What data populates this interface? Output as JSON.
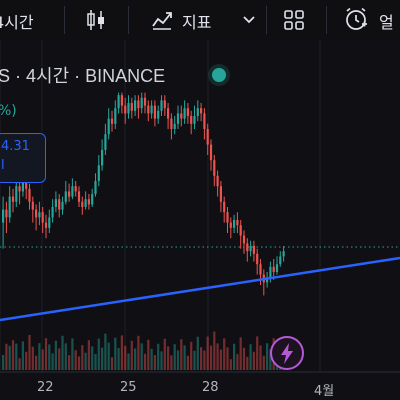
{
  "toolbar": {
    "interval_label": "4시간",
    "indicators_label": "지표",
    "alert_label": "얼"
  },
  "symbol": {
    "line": "S · 4시간 · BINANCE",
    "change_text": "%)",
    "price_box_line1": "4.31",
    "price_box_line2": "l"
  },
  "colors": {
    "up": "#26a69a",
    "down": "#ef5350",
    "trendline": "#2962ff",
    "price_line": "#26a69a",
    "background": "#101014"
  },
  "icons": [
    "candles-icon",
    "indicators-icon",
    "chevron-down-icon",
    "layout-grid-icon",
    "alarm-icon",
    "lightning-icon"
  ],
  "chart_data": {
    "type": "candlestick",
    "x_tick_labels": [
      "22",
      "25",
      "28",
      "4월"
    ],
    "price_scale": "relative (no price axis visible)",
    "trendline": "ascending blue line from lower-left to right",
    "current_price_line": "dotted green horizontal line",
    "candles": [
      [
        50,
        55,
        40,
        60
      ],
      [
        55,
        52,
        46,
        58
      ],
      [
        52,
        60,
        50,
        64
      ],
      [
        60,
        58,
        54,
        63
      ],
      [
        58,
        64,
        56,
        68
      ],
      [
        64,
        62,
        57,
        66
      ],
      [
        62,
        66,
        60,
        70
      ],
      [
        66,
        63,
        59,
        68
      ],
      [
        63,
        58,
        55,
        65
      ],
      [
        58,
        55,
        50,
        60
      ],
      [
        55,
        52,
        47,
        57
      ],
      [
        52,
        54,
        49,
        58
      ],
      [
        54,
        50,
        46,
        56
      ],
      [
        50,
        48,
        44,
        53
      ],
      [
        48,
        52,
        46,
        55
      ],
      [
        52,
        56,
        50,
        59
      ],
      [
        56,
        59,
        54,
        62
      ],
      [
        59,
        55,
        52,
        61
      ],
      [
        55,
        58,
        53,
        60
      ],
      [
        58,
        62,
        57,
        66
      ],
      [
        62,
        60,
        58,
        65
      ],
      [
        60,
        64,
        59,
        67
      ],
      [
        64,
        62,
        60,
        66
      ],
      [
        62,
        58,
        56,
        64
      ],
      [
        58,
        56,
        53,
        60
      ],
      [
        56,
        59,
        55,
        62
      ],
      [
        59,
        57,
        55,
        61
      ],
      [
        57,
        61,
        56,
        63
      ],
      [
        61,
        66,
        60,
        69
      ],
      [
        66,
        72,
        64,
        76
      ],
      [
        72,
        78,
        70,
        82
      ],
      [
        78,
        84,
        76,
        88
      ],
      [
        84,
        90,
        82,
        94
      ],
      [
        90,
        88,
        85,
        93
      ],
      [
        88,
        94,
        86,
        97
      ],
      [
        94,
        99,
        92,
        100
      ],
      [
        99,
        95,
        92,
        100
      ],
      [
        95,
        92,
        88,
        98
      ],
      [
        92,
        96,
        90,
        99
      ],
      [
        96,
        93,
        90,
        98
      ],
      [
        93,
        97,
        91,
        99
      ],
      [
        97,
        94,
        90,
        99
      ],
      [
        94,
        98,
        92,
        100
      ],
      [
        98,
        95,
        92,
        100
      ],
      [
        95,
        92,
        89,
        97
      ],
      [
        92,
        95,
        90,
        97
      ],
      [
        95,
        90,
        87,
        97
      ],
      [
        90,
        93,
        88,
        95
      ],
      [
        93,
        97,
        91,
        99
      ],
      [
        97,
        94,
        91,
        99
      ],
      [
        94,
        90,
        86,
        96
      ],
      [
        90,
        86,
        82,
        92
      ],
      [
        86,
        88,
        84,
        91
      ],
      [
        88,
        92,
        86,
        95
      ],
      [
        92,
        90,
        87,
        95
      ],
      [
        90,
        94,
        88,
        97
      ],
      [
        94,
        91,
        88,
        96
      ],
      [
        91,
        88,
        84,
        93
      ],
      [
        88,
        91,
        86,
        95
      ],
      [
        91,
        94,
        89,
        97
      ],
      [
        94,
        92,
        89,
        96
      ],
      [
        92,
        86,
        82,
        94
      ],
      [
        86,
        80,
        76,
        88
      ],
      [
        80,
        74,
        70,
        82
      ],
      [
        74,
        68,
        64,
        76
      ],
      [
        68,
        64,
        60,
        70
      ],
      [
        64,
        58,
        54,
        66
      ],
      [
        58,
        54,
        50,
        60
      ],
      [
        54,
        50,
        46,
        56
      ],
      [
        50,
        48,
        44,
        52
      ],
      [
        48,
        51,
        46,
        53
      ],
      [
        51,
        49,
        46,
        54
      ],
      [
        49,
        45,
        40,
        51
      ],
      [
        45,
        42,
        38,
        47
      ],
      [
        42,
        39,
        35,
        44
      ],
      [
        39,
        41,
        37,
        43
      ],
      [
        41,
        38,
        35,
        43
      ],
      [
        38,
        34,
        30,
        40
      ],
      [
        34,
        30,
        26,
        36
      ],
      [
        30,
        27,
        22,
        32
      ],
      [
        27,
        29,
        25,
        31
      ],
      [
        29,
        33,
        27,
        35
      ],
      [
        33,
        31,
        28,
        36
      ],
      [
        31,
        34,
        30,
        37
      ],
      [
        34,
        37,
        33,
        39
      ],
      [
        37,
        39,
        35,
        41
      ]
    ]
  }
}
